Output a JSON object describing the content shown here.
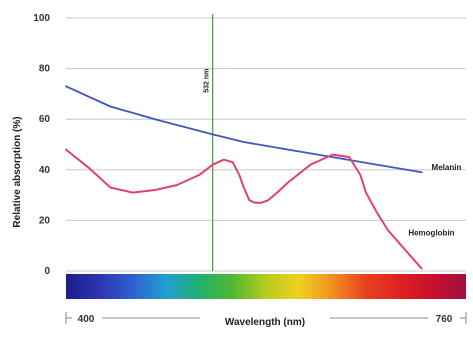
{
  "chart_data": {
    "type": "line",
    "xlabel": "Wavelength (nm)",
    "ylabel": "Relative absorption (%)",
    "xlim": [
      400,
      760
    ],
    "ylim": [
      0,
      100
    ],
    "x_tick_labels": [
      "400",
      "760"
    ],
    "y_tick_labels": [
      "100",
      "80",
      "60",
      "40",
      "20",
      "0"
    ],
    "grid": true,
    "series": [
      {
        "name": "Melanin",
        "color": "#4455bb",
        "x": [
          400,
          440,
          480,
          532,
          560,
          600,
          640,
          680,
          720
        ],
        "y": [
          73,
          65,
          60,
          54,
          51,
          48,
          45,
          42,
          39
        ]
      },
      {
        "name": "Hemoglobin",
        "color": "#e0407a",
        "x": [
          400,
          420,
          440,
          460,
          480,
          500,
          520,
          532,
          542,
          550,
          556,
          560,
          565,
          570,
          576,
          582,
          590,
          600,
          620,
          640,
          655,
          665,
          670,
          680,
          690,
          700,
          710,
          720
        ],
        "y": [
          48,
          41,
          33,
          31,
          32,
          34,
          38,
          42,
          44,
          43,
          38,
          33,
          28,
          27,
          27,
          28,
          31,
          35,
          42,
          46,
          45,
          38,
          31,
          23,
          16,
          11,
          6,
          1
        ]
      }
    ],
    "vertical_line": {
      "x": 532,
      "label": "532 nm",
      "color": "#3a9e3a"
    },
    "spectrum_colors": [
      "#1a1f8c",
      "#2c34b0",
      "#3060d0",
      "#20a0d0",
      "#20b070",
      "#50b830",
      "#b8cc20",
      "#f0d020",
      "#f09020",
      "#e84020",
      "#e02020",
      "#c8102c",
      "#a01040"
    ]
  }
}
